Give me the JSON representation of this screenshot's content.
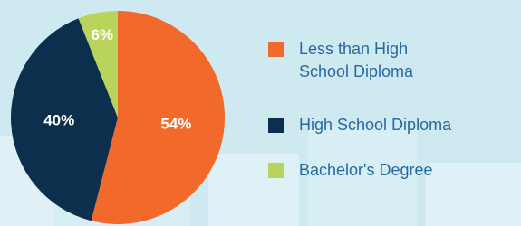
{
  "chart_data": {
    "type": "pie",
    "categories": [
      "Less than High School Diploma",
      "High School Diploma",
      "Bachelor's Degree"
    ],
    "values": [
      54,
      40,
      6
    ],
    "value_labels": [
      "54%",
      "40%",
      "6%"
    ],
    "colors": [
      "#f26a2b",
      "#0c2f4e",
      "#b9d45b"
    ]
  }
}
